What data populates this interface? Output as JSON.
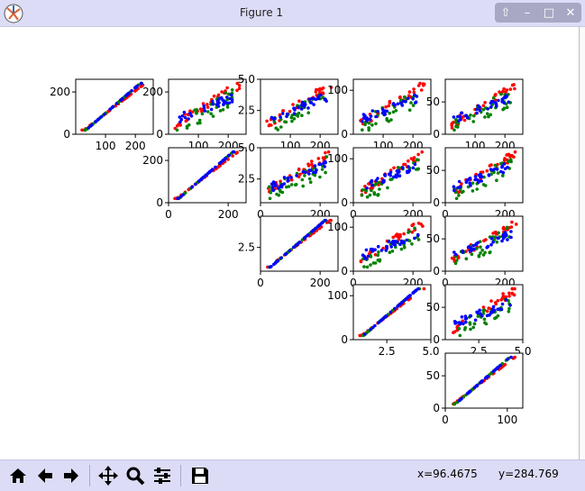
{
  "window": {
    "title": "Figure 1",
    "icons": [
      "matplotlib-app-icon",
      "up-icon",
      "minimize-icon",
      "maximize-icon",
      "close-icon"
    ]
  },
  "toolbar": {
    "buttons": [
      "home-icon",
      "back-arrow-icon",
      "forward-arrow-icon",
      "pan-icon",
      "zoom-magnifier-icon",
      "subplots-config-icon",
      "save-floppy-icon"
    ],
    "coord_x": "x=96.4675",
    "coord_y": "y=284.769"
  },
  "colors": {
    "series": [
      "#ff0000",
      "#008000",
      "#0000ff"
    ],
    "titlebar": "#dcdcf7",
    "toolbar": "#dcdcf7"
  },
  "chart_data": {
    "type": "scatter",
    "layout": "upper-triangular scatter matrix of 5 variables, 3 color groups (red, green, blue)",
    "panels": [
      {
        "row": 0,
        "col": 0,
        "xlim": [
          0,
          260
        ],
        "ylim": [
          0,
          260
        ],
        "yticks": [
          "0",
          "200"
        ],
        "xticks": [
          "100",
          "200"
        ]
      },
      {
        "row": 0,
        "col": 1,
        "xlim": [
          0,
          260
        ],
        "ylim": [
          0,
          260
        ],
        "yticks": [
          "0",
          "200"
        ],
        "xticks": [
          "100",
          "200"
        ]
      },
      {
        "row": 0,
        "col": 2,
        "xlim": [
          0,
          260
        ],
        "ylim": [
          0.6,
          5.0
        ],
        "yticks": [
          "2.5",
          "5.0"
        ],
        "xticks": [
          "100",
          "200"
        ]
      },
      {
        "row": 0,
        "col": 3,
        "xlim": [
          0,
          260
        ],
        "ylim": [
          0,
          125
        ],
        "yticks": [
          "0",
          "100"
        ],
        "xticks": [
          "100",
          "200"
        ]
      },
      {
        "row": 0,
        "col": 4,
        "xlim": [
          0,
          260
        ],
        "ylim": [
          0,
          85
        ],
        "yticks": [
          "0",
          "50"
        ],
        "xticks": [
          "100",
          "200"
        ]
      },
      {
        "row": 1,
        "col": 1,
        "xlim": [
          0,
          260
        ],
        "ylim": [
          0,
          260
        ],
        "yticks": [
          "0",
          "200"
        ],
        "xticks": [
          "0",
          "200"
        ]
      },
      {
        "row": 1,
        "col": 2,
        "xlim": [
          0,
          260
        ],
        "ylim": [
          0.6,
          5.0
        ],
        "yticks": [
          "2.5",
          "5.0"
        ],
        "xticks": [
          "0",
          "200"
        ]
      },
      {
        "row": 1,
        "col": 3,
        "xlim": [
          0,
          260
        ],
        "ylim": [
          0,
          125
        ],
        "yticks": [
          "0",
          "100"
        ],
        "xticks": [
          "0",
          "200"
        ]
      },
      {
        "row": 1,
        "col": 4,
        "xlim": [
          0,
          260
        ],
        "ylim": [
          0,
          85
        ],
        "yticks": [
          "0",
          "50"
        ],
        "xticks": [
          "0",
          "200"
        ]
      },
      {
        "row": 2,
        "col": 2,
        "xlim": [
          0,
          260
        ],
        "ylim": [
          0.6,
          5.0
        ],
        "yticks": [
          "2.5"
        ],
        "xticks": [
          "0",
          "200"
        ]
      },
      {
        "row": 2,
        "col": 3,
        "xlim": [
          0,
          260
        ],
        "ylim": [
          0,
          125
        ],
        "yticks": [
          "0",
          "100"
        ],
        "xticks": [
          "0",
          "200"
        ]
      },
      {
        "row": 2,
        "col": 4,
        "xlim": [
          0,
          260
        ],
        "ylim": [
          0,
          85
        ],
        "yticks": [
          "0",
          "50"
        ],
        "xticks": [
          "0",
          "200"
        ]
      },
      {
        "row": 3,
        "col": 3,
        "xlim": [
          0.6,
          5.0
        ],
        "ylim": [
          0,
          125
        ],
        "yticks": [
          "0",
          "100"
        ],
        "xticks": [
          "2.5",
          "5.0"
        ]
      },
      {
        "row": 3,
        "col": 4,
        "xlim": [
          0.6,
          5.0
        ],
        "ylim": [
          0,
          85
        ],
        "yticks": [
          "0",
          "50"
        ],
        "xticks": [
          "2.5",
          "5.0"
        ]
      },
      {
        "row": 4,
        "col": 4,
        "xlim": [
          0,
          125
        ],
        "ylim": [
          0,
          85
        ],
        "yticks": [
          "0",
          "50"
        ],
        "xticks": [
          "0",
          "100"
        ]
      }
    ],
    "grid": false
  }
}
